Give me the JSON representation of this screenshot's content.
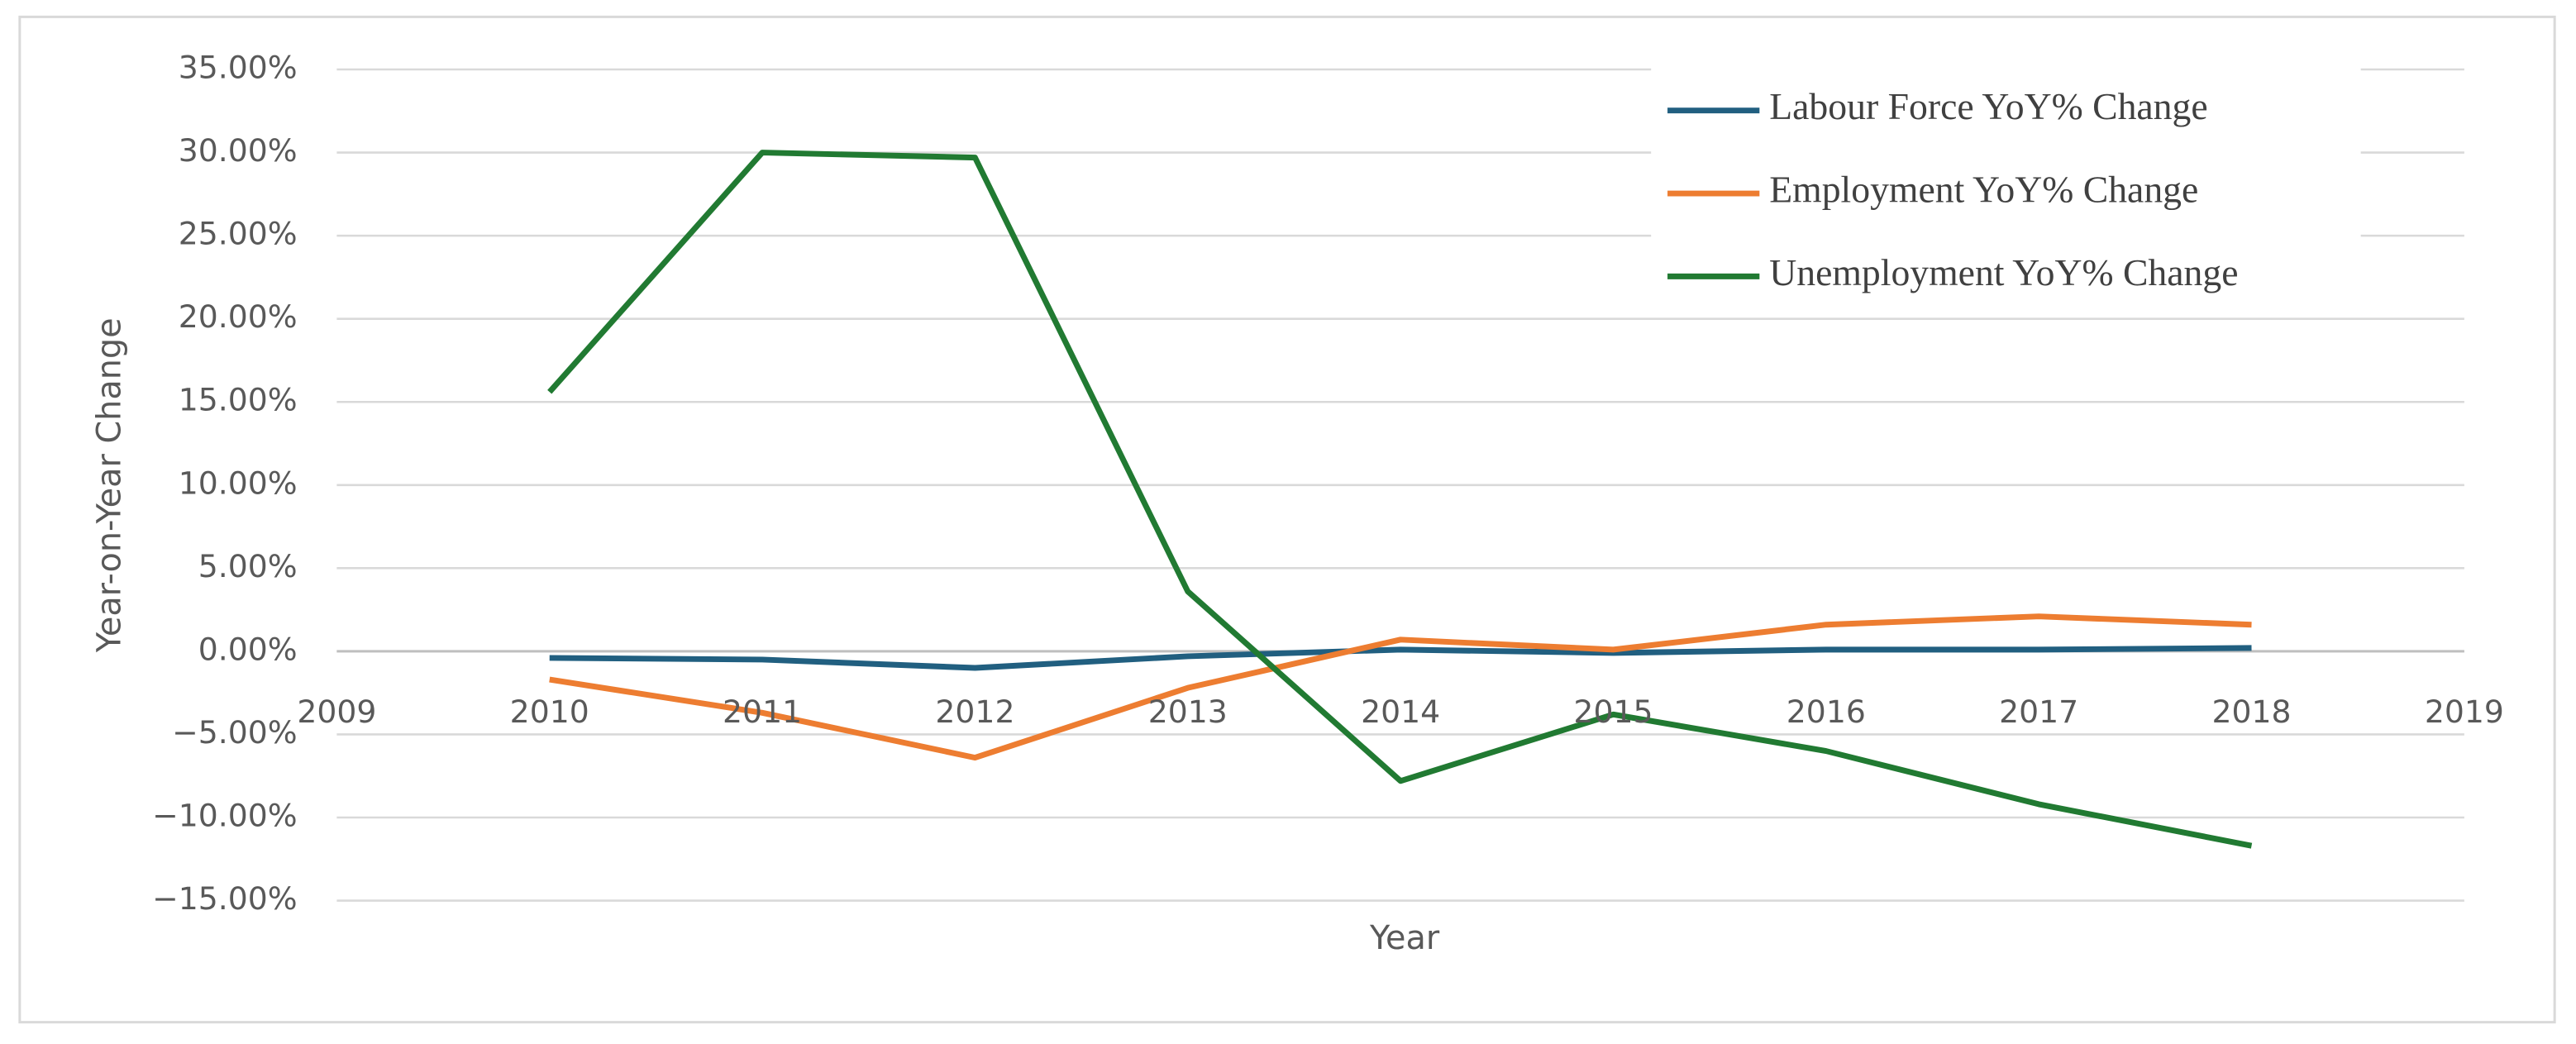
{
  "chart_data": {
    "type": "line",
    "x_label": "Year",
    "y_label": "Year-on-Year Change",
    "x": [
      2010,
      2011,
      2012,
      2013,
      2014,
      2015,
      2016,
      2017,
      2018
    ],
    "xlim": [
      2009,
      2019
    ],
    "xticks": [
      2009,
      2010,
      2011,
      2012,
      2013,
      2014,
      2015,
      2016,
      2017,
      2018,
      2019
    ],
    "ylim": [
      -15,
      35
    ],
    "yticks": [
      {
        "value": -15,
        "label": "−15.00%"
      },
      {
        "value": -10,
        "label": "−10.00%"
      },
      {
        "value": -5,
        "label": "−5.00%"
      },
      {
        "value": 0,
        "label": "0.00%"
      },
      {
        "value": 5,
        "label": "5.00%"
      },
      {
        "value": 10,
        "label": "10.00%"
      },
      {
        "value": 15,
        "label": "15.00%"
      },
      {
        "value": 20,
        "label": "20.00%"
      },
      {
        "value": 25,
        "label": "25.00%"
      },
      {
        "value": 30,
        "label": "30.00%"
      },
      {
        "value": 35,
        "label": "35.00%"
      }
    ],
    "grid": true,
    "legend": "top-right",
    "series": [
      {
        "name": "Labour Force YoY% Change",
        "color": "#215f80",
        "values": [
          -0.4,
          -0.5,
          -1.0,
          -0.3,
          0.1,
          -0.1,
          0.1,
          0.1,
          0.2
        ]
      },
      {
        "name": "Employment YoY% Change",
        "color": "#ed7d31",
        "values": [
          -1.7,
          -3.7,
          -6.4,
          -2.2,
          0.7,
          0.1,
          1.6,
          2.1,
          1.6
        ]
      },
      {
        "name": "Unemployment YoY% Change",
        "color": "#217a32",
        "values": [
          15.6,
          30.0,
          29.7,
          3.6,
          -7.8,
          -3.8,
          -6.0,
          -9.2,
          -11.7
        ]
      }
    ]
  }
}
